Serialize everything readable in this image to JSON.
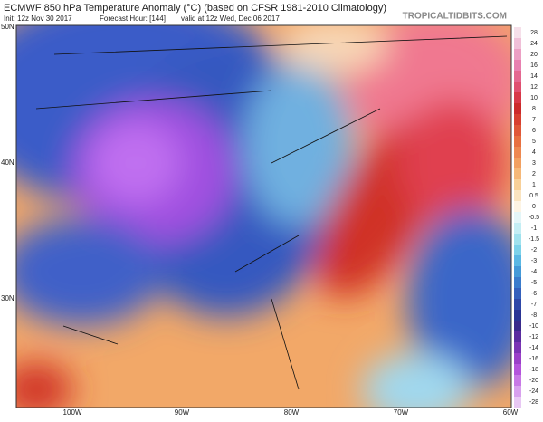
{
  "header": {
    "title": "ECMWF 850 hPa Temperature Anomaly (°C) (based on CFSR 1981-2010 Climatology)",
    "init": "Init: 12z Nov 30 2017",
    "forecast_hour": "Forecast Hour: [144]",
    "valid": "valid at 12z Wed, Dec 06 2017",
    "watermark": "TROPICALTIDBITS.COM"
  },
  "map": {
    "lat_labels": [
      "50N",
      "40N",
      "30N"
    ],
    "lon_labels": [
      "100W",
      "90W",
      "80W",
      "70W",
      "60W"
    ]
  },
  "colorbar": {
    "labels": [
      "28",
      "24",
      "20",
      "16",
      "14",
      "12",
      "10",
      "8",
      "7",
      "6",
      "5",
      "4",
      "3",
      "2",
      "1",
      "0.5",
      "0",
      "-0.5",
      "-1",
      "-1.5",
      "-2",
      "-3",
      "-4",
      "-5",
      "-6",
      "-7",
      "-8",
      "-10",
      "-12",
      "-14",
      "-16",
      "-18",
      "-20",
      "-24",
      "-28"
    ],
    "colors": [
      "#f6e0ea",
      "#f0c0d8",
      "#eca0c4",
      "#e880b0",
      "#e46890",
      "#e05070",
      "#d83848",
      "#cc2a2a",
      "#d84030",
      "#e05838",
      "#e87040",
      "#ee8850",
      "#f2a060",
      "#f6b878",
      "#f8d098",
      "#fae4c0",
      "#fdf4e4",
      "#e4f6f8",
      "#c4eef4",
      "#a0e2ee",
      "#7cd2ea",
      "#5ab8e4",
      "#449ad8",
      "#3a7ccc",
      "#3460bc",
      "#2e48a8",
      "#2a3494",
      "#3a2a8c",
      "#5a2ca0",
      "#7a34b4",
      "#9a40c8",
      "#b454dc",
      "#c878e6",
      "#d8a0ee",
      "#e8c8f4"
    ]
  }
}
